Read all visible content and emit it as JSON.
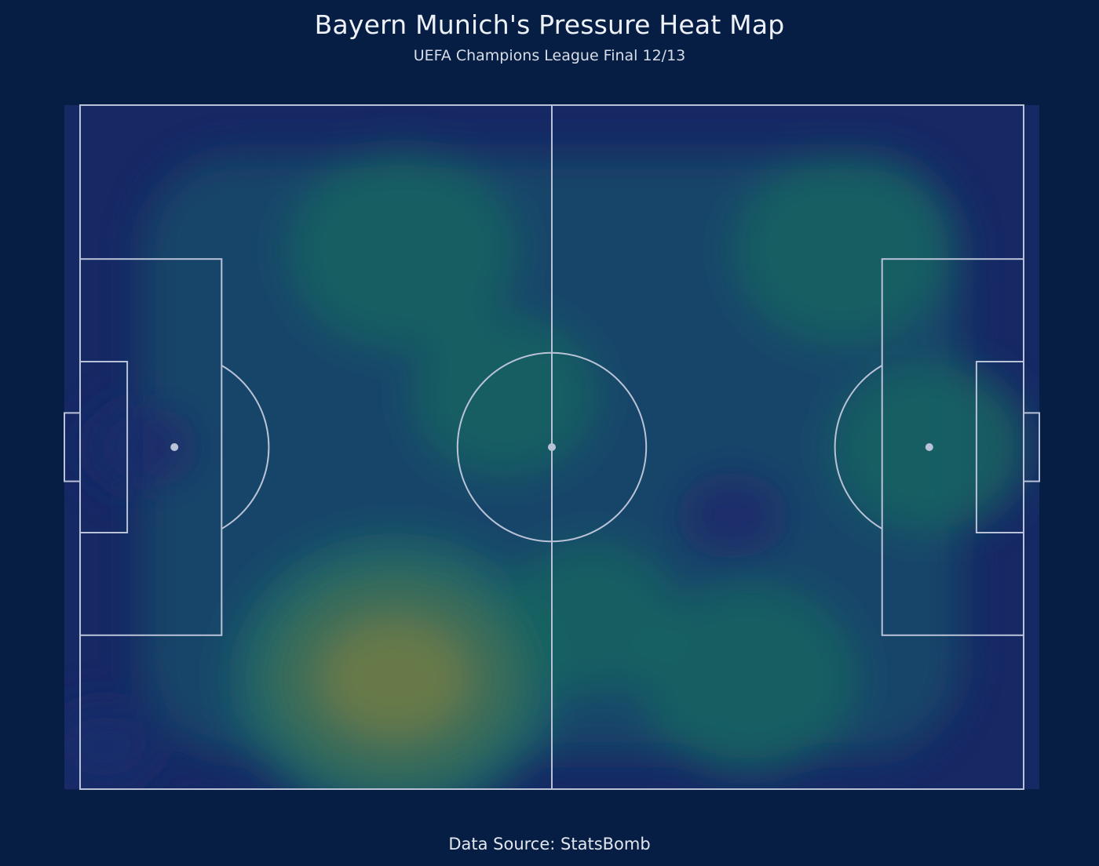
{
  "title": "Bayern Munich's Pressure Heat Map",
  "subtitle": "UEFA Champions League Final 12/13",
  "footer": "Data Source: StatsBomb",
  "colors": {
    "background": "#061e44",
    "pitch_lines": "#b9c2d6",
    "heat_low": "#1b2c6b",
    "heat_mid": "#135a67",
    "heat_high": "#6a7a48"
  },
  "chart_data": {
    "type": "heatmap",
    "title": "Bayern Munich's Pressure Heat Map",
    "subtitle": "UEFA Champions League Final 12/13",
    "pitch": {
      "length": 120,
      "width": 80,
      "coordinate_system": "statsbomb"
    },
    "grid": false,
    "legend": "none",
    "density_hotspots": [
      {
        "x": 40,
        "y": 67,
        "intensity": 1.0
      },
      {
        "x": 41,
        "y": 17,
        "intensity": 0.55
      },
      {
        "x": 85,
        "y": 67,
        "intensity": 0.5
      },
      {
        "x": 97,
        "y": 17,
        "intensity": 0.5
      },
      {
        "x": 108,
        "y": 40,
        "intensity": 0.4
      },
      {
        "x": 54,
        "y": 34,
        "intensity": 0.35
      },
      {
        "x": 65,
        "y": 60,
        "intensity": 0.3
      }
    ],
    "low_density_zones": [
      {
        "x": 83,
        "y": 48
      },
      {
        "x": 8,
        "y": 40
      },
      {
        "x": 3,
        "y": 75
      }
    ]
  }
}
